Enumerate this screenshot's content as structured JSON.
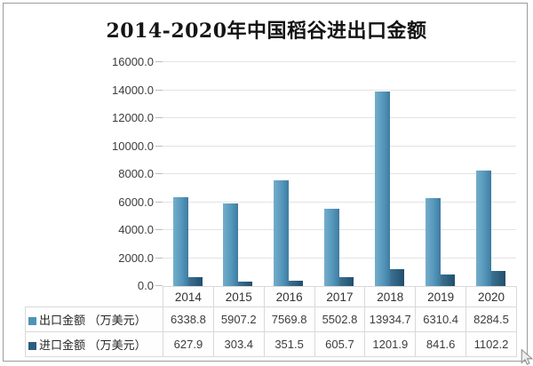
{
  "chart_data": {
    "type": "bar",
    "title": "2014-2020年中国稻谷进出口金额",
    "categories": [
      "2014",
      "2015",
      "2016",
      "2017",
      "2018",
      "2019",
      "2020"
    ],
    "series": [
      {
        "name": "出口金额 （万美元）",
        "color": "#5597bc",
        "legend_swatch": "#4f93b8",
        "values": [
          6338.8,
          5907.2,
          7569.8,
          5502.8,
          13934.7,
          6310.4,
          8284.5
        ]
      },
      {
        "name": "进口金额 （万美元）",
        "color": "#2e5f7e",
        "legend_swatch": "#2c5d7c",
        "values": [
          627.9,
          303.4,
          351.5,
          605.7,
          1201.9,
          841.6,
          1102.2
        ]
      }
    ],
    "xlabel": "",
    "ylabel": "",
    "ylim": [
      0,
      16000
    ],
    "ytick_step": 2000,
    "ytick_labels": [
      "0.0",
      "2000.0",
      "4000.0",
      "6000.0",
      "8000.0",
      "10000.0",
      "12000.0",
      "14000.0",
      "16000.0"
    ],
    "grid": true,
    "legend_position": "data-table-left",
    "data_table_shown": true
  },
  "colors": {
    "panel_border": "#9b9b9b",
    "gridline": "#e3e3e3",
    "axis_line": "#c3c3c3",
    "table_border": "#d9d9d9",
    "title_text": "#141414",
    "value_text": "#3c3c3c"
  }
}
